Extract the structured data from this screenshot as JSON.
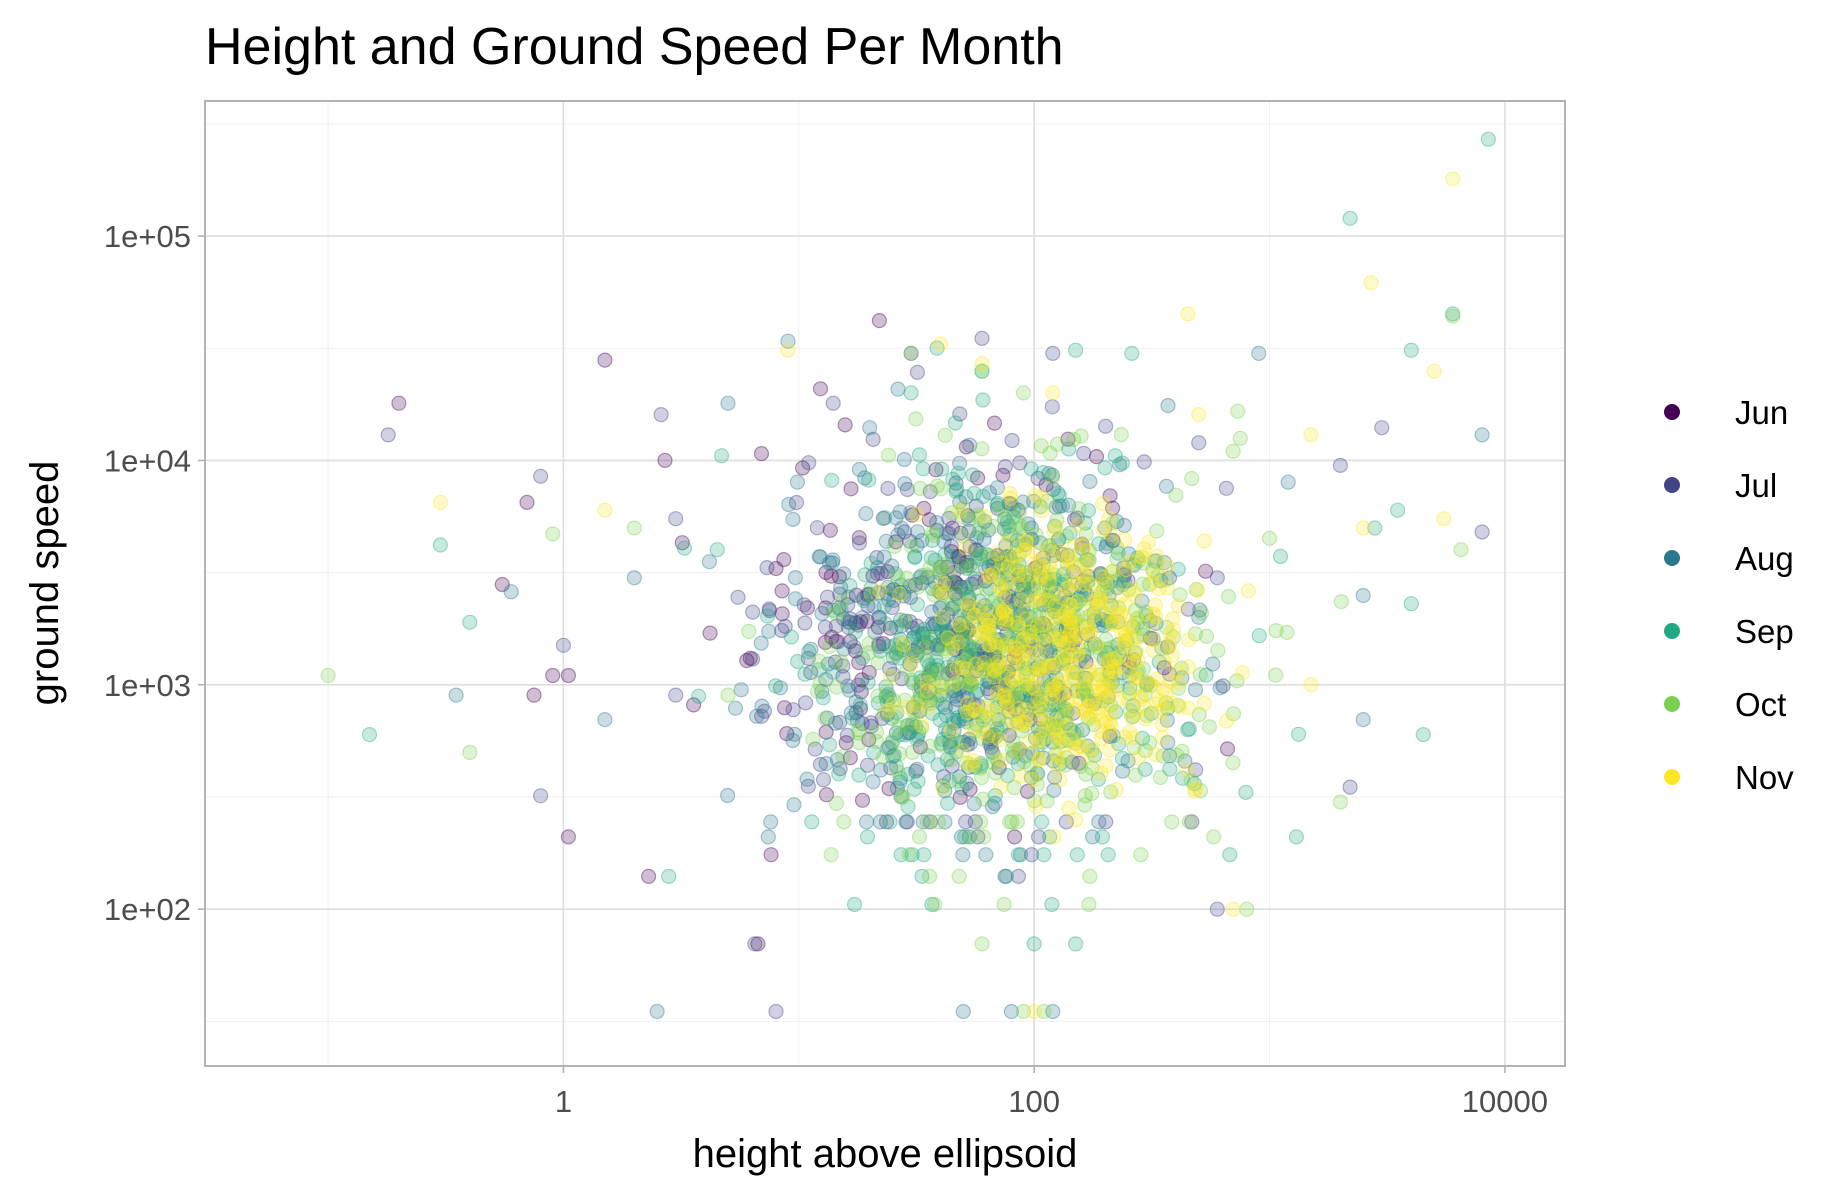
{
  "chart_data": {
    "type": "scatter",
    "title": "Height and Ground Speed Per Month",
    "xlabel": "height above ellipsoid",
    "ylabel": "ground speed",
    "x_scale": "log10",
    "y_scale": "log10",
    "xlim": [
      0.03,
      18000
    ],
    "ylim": [
      20,
      400000
    ],
    "x_ticks": [
      {
        "value": 1,
        "label": "1"
      },
      {
        "value": 100,
        "label": "100"
      },
      {
        "value": 10000,
        "label": "10000"
      }
    ],
    "y_ticks": [
      {
        "value": 100,
        "label": "1e+02"
      },
      {
        "value": 1000,
        "label": "1e+03"
      },
      {
        "value": 10000,
        "label": "1e+04"
      },
      {
        "value": 100000,
        "label": "1e+05"
      }
    ],
    "grid": true,
    "legend_position": "right",
    "point_opacity": 0.25,
    "series": [
      {
        "name": "Jun",
        "color": "#440154",
        "center": [
          40,
          2000
        ],
        "points": [
          [
            0.2,
            18000
          ],
          [
            0.7,
            6500
          ],
          [
            0.75,
            900
          ],
          [
            1.05,
            1100
          ],
          [
            1.05,
            210
          ],
          [
            2.7,
            10000
          ],
          [
            3.2,
            4300
          ],
          [
            6.7,
            70
          ],
          [
            2.3,
            140
          ],
          [
            1.5,
            28000
          ],
          [
            22,
            42000
          ],
          [
            4.2,
            1700
          ],
          [
            8,
            3300
          ],
          [
            13,
            2200
          ],
          [
            0.9,
            1100
          ],
          [
            0.55,
            2800
          ]
        ]
      },
      {
        "name": "Jul",
        "color": "#414487",
        "center": [
          50,
          1800
        ],
        "points": [
          [
            0.18,
            13000
          ],
          [
            0.8,
            8500
          ],
          [
            0.8,
            320
          ],
          [
            1.0,
            1500
          ],
          [
            2.6,
            16000
          ],
          [
            3.0,
            5500
          ],
          [
            3.0,
            900
          ],
          [
            6.5,
            70
          ],
          [
            8,
            35
          ],
          [
            14,
            18000
          ],
          [
            30,
            30000
          ],
          [
            60,
            35000
          ],
          [
            120,
            30000
          ],
          [
            500,
            12000
          ],
          [
            600,
            3000
          ],
          [
            2000,
            9500
          ],
          [
            3000,
            14000
          ],
          [
            8000,
            4800
          ],
          [
            2200,
            350
          ],
          [
            600,
            100
          ]
        ]
      },
      {
        "name": "Aug",
        "color": "#2a788e",
        "center": [
          60,
          1500
        ],
        "points": [
          [
            0.6,
            2600
          ],
          [
            0.35,
            900
          ],
          [
            1.5,
            700
          ],
          [
            2.0,
            3000
          ],
          [
            2.5,
            35
          ],
          [
            5,
            18000
          ],
          [
            9,
            34000
          ],
          [
            20,
            14000
          ],
          [
            40,
            900
          ],
          [
            200,
            5000
          ],
          [
            300,
            1000
          ],
          [
            500,
            2000
          ],
          [
            900,
            30000
          ],
          [
            1200,
            8000
          ],
          [
            2500,
            2500
          ],
          [
            2500,
            700
          ],
          [
            8000,
            13000
          ],
          [
            50,
            35
          ],
          [
            80,
            35
          ],
          [
            120,
            35
          ]
        ]
      },
      {
        "name": "Sep",
        "color": "#22a884",
        "center": [
          70,
          1500
        ],
        "points": [
          [
            0.15,
            600
          ],
          [
            0.4,
            1900
          ],
          [
            0.3,
            4200
          ],
          [
            2.8,
            140
          ],
          [
            4.5,
            4000
          ],
          [
            4.7,
            10500
          ],
          [
            30,
            20000
          ],
          [
            60,
            25000
          ],
          [
            150,
            31000
          ],
          [
            260,
            30000
          ],
          [
            2200,
            120000
          ],
          [
            2800,
            5000
          ],
          [
            3500,
            6000
          ],
          [
            8500,
            270000
          ],
          [
            6000,
            45000
          ],
          [
            4000,
            31000
          ],
          [
            4000,
            2300
          ],
          [
            1300,
            210
          ],
          [
            4500,
            600
          ],
          [
            100,
            70
          ],
          [
            150,
            70
          ]
        ]
      },
      {
        "name": "Oct",
        "color": "#7ad151",
        "center": [
          90,
          1400
        ],
        "points": [
          [
            0.1,
            1100
          ],
          [
            0.4,
            500
          ],
          [
            0.9,
            4700
          ],
          [
            2.0,
            5000
          ],
          [
            5,
            900
          ],
          [
            30,
            30000
          ],
          [
            60,
            25000
          ],
          [
            90,
            20000
          ],
          [
            400,
            7000
          ],
          [
            700,
            11000
          ],
          [
            1000,
            4500
          ],
          [
            6000,
            44000
          ],
          [
            6500,
            4000
          ],
          [
            2000,
            300
          ],
          [
            800,
            100
          ],
          [
            60,
            70
          ],
          [
            90,
            35
          ],
          [
            110,
            35
          ]
        ]
      },
      {
        "name": "Nov",
        "color": "#fde725",
        "center": [
          130,
          1500
        ],
        "points": [
          [
            0.3,
            6500
          ],
          [
            1.5,
            6000
          ],
          [
            9,
            31000
          ],
          [
            40,
            33000
          ],
          [
            60,
            27000
          ],
          [
            120,
            20000
          ],
          [
            450,
            45000
          ],
          [
            500,
            16000
          ],
          [
            1500,
            13000
          ],
          [
            1500,
            1000
          ],
          [
            2500,
            5000
          ],
          [
            2700,
            62000
          ],
          [
            5000,
            25000
          ],
          [
            5500,
            5500
          ],
          [
            6000,
            180000
          ],
          [
            700,
            100
          ],
          [
            150,
            250
          ],
          [
            100,
            35
          ]
        ]
      }
    ]
  }
}
